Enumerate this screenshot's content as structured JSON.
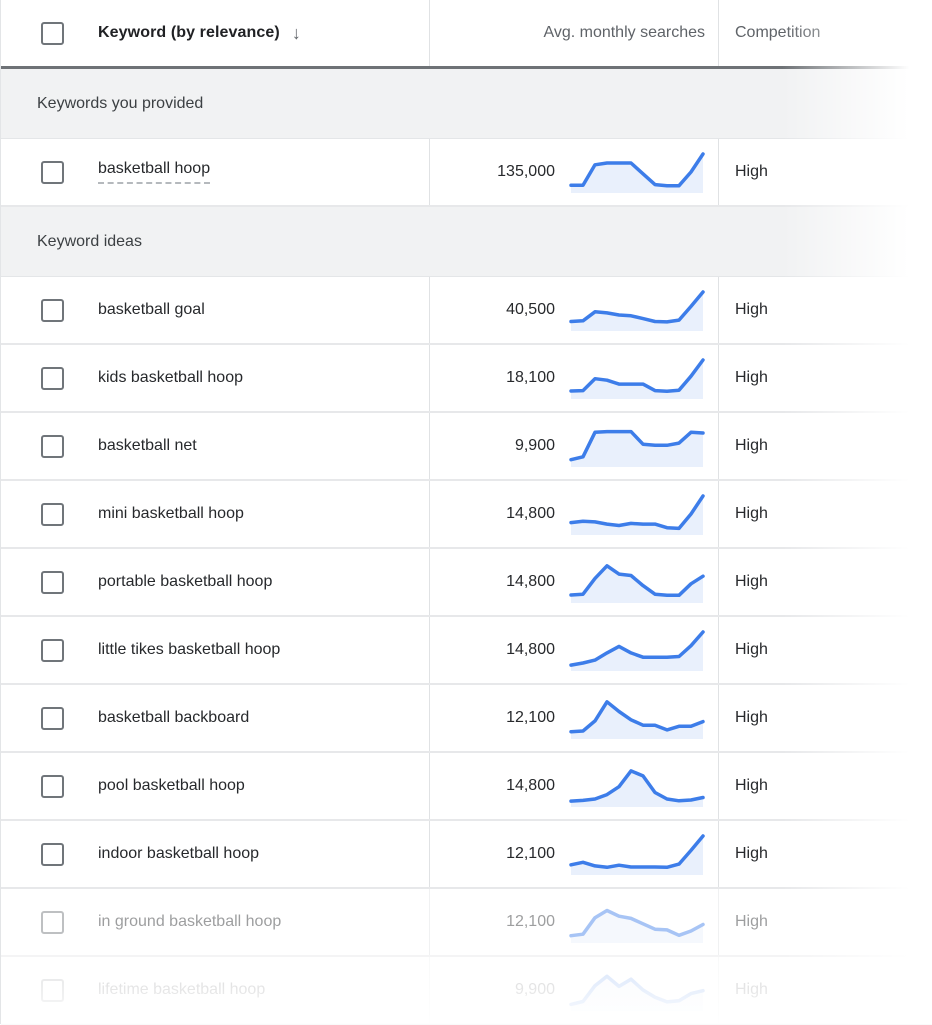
{
  "header": {
    "keyword_label": "Keyword (by relevance)",
    "sort_glyph": "↓",
    "avg_label": "Avg. monthly searches",
    "competition_label": "Competition"
  },
  "sections": [
    {
      "label": "Keywords you provided",
      "rows": [
        {
          "keyword": "basketball hoop",
          "avg_monthly_searches": "135,000",
          "competition": "High",
          "underlined": true,
          "state": "normal",
          "trend": [
            13,
            13,
            70,
            75,
            75,
            75,
            45,
            15,
            12,
            12,
            50,
            100
          ]
        }
      ]
    },
    {
      "label": "Keyword ideas",
      "rows": [
        {
          "keyword": "basketball goal",
          "avg_monthly_searches": "40,500",
          "competition": "High",
          "state": "normal",
          "trend": [
            18,
            20,
            45,
            42,
            36,
            34,
            26,
            18,
            17,
            22,
            60,
            100
          ]
        },
        {
          "keyword": "kids basketball hoop",
          "avg_monthly_searches": "18,100",
          "competition": "High",
          "state": "normal",
          "trend": [
            14,
            15,
            48,
            44,
            33,
            33,
            33,
            15,
            13,
            16,
            55,
            100
          ]
        },
        {
          "keyword": "basketball net",
          "avg_monthly_searches": "9,900",
          "competition": "High",
          "state": "normal",
          "trend": [
            12,
            20,
            88,
            90,
            90,
            90,
            55,
            52,
            52,
            58,
            88,
            86
          ]
        },
        {
          "keyword": "mini basketball hoop",
          "avg_monthly_searches": "14,800",
          "competition": "High",
          "state": "normal",
          "trend": [
            26,
            30,
            28,
            22,
            18,
            24,
            22,
            22,
            12,
            10,
            50,
            100
          ]
        },
        {
          "keyword": "portable basketball hoop",
          "avg_monthly_searches": "14,800",
          "competition": "High",
          "state": "normal",
          "trend": [
            14,
            16,
            60,
            95,
            72,
            68,
            40,
            16,
            13,
            13,
            45,
            66
          ]
        },
        {
          "keyword": "little tikes basketball hoop",
          "avg_monthly_searches": "14,800",
          "competition": "High",
          "state": "normal",
          "trend": [
            8,
            14,
            22,
            42,
            60,
            42,
            30,
            30,
            30,
            32,
            62,
            100
          ]
        },
        {
          "keyword": "basketball backboard",
          "avg_monthly_searches": "12,100",
          "competition": "High",
          "state": "normal",
          "trend": [
            12,
            14,
            42,
            95,
            68,
            45,
            30,
            30,
            17,
            27,
            27,
            40
          ]
        },
        {
          "keyword": "pool basketball hoop",
          "avg_monthly_searches": "14,800",
          "competition": "High",
          "state": "normal",
          "trend": [
            8,
            10,
            14,
            26,
            48,
            92,
            78,
            32,
            14,
            9,
            11,
            18
          ]
        },
        {
          "keyword": "indoor basketball hoop",
          "avg_monthly_searches": "12,100",
          "competition": "High",
          "state": "normal",
          "trend": [
            20,
            27,
            17,
            13,
            19,
            14,
            14,
            14,
            13,
            22,
            60,
            100
          ]
        },
        {
          "keyword": "in ground basketball hoop",
          "avg_monthly_searches": "12,100",
          "competition": "High",
          "state": "faded",
          "trend": [
            12,
            16,
            62,
            82,
            66,
            60,
            45,
            30,
            28,
            13,
            25,
            43
          ]
        },
        {
          "keyword": "lifetime basketball hoop",
          "avg_monthly_searches": "9,900",
          "competition": "High",
          "state": "very-faded",
          "trend": [
            10,
            18,
            62,
            88,
            60,
            80,
            50,
            30,
            17,
            20,
            40,
            48
          ]
        }
      ]
    }
  ],
  "colors": {
    "sparkline_line": "#3d7de9",
    "sparkline_fill": "#e9f0fc"
  }
}
